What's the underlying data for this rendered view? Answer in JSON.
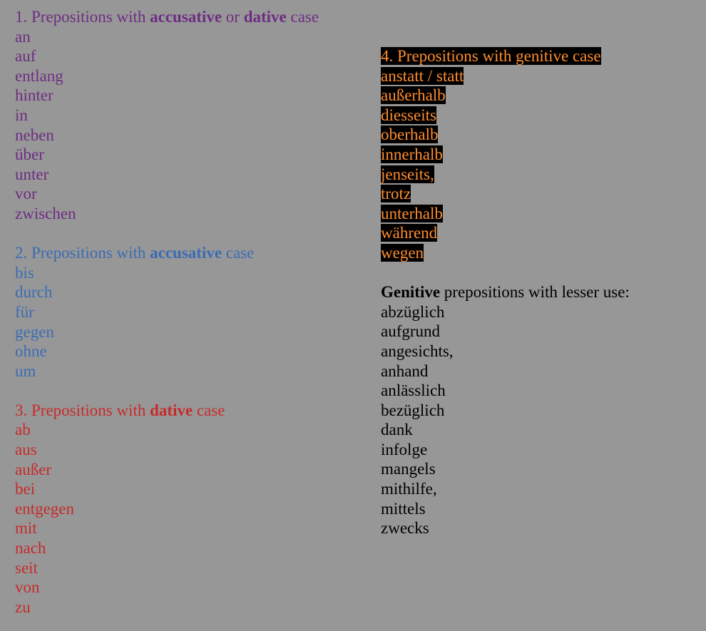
{
  "section1": {
    "heading_prefix": "1. Prepositions with ",
    "heading_b1": "accusative",
    "heading_mid": " or ",
    "heading_b2": "dative",
    "heading_suffix": " case",
    "items": [
      "an",
      "auf",
      "entlang",
      "hinter",
      "in",
      "neben",
      "über",
      "unter",
      "vor",
      "zwischen"
    ],
    "color": "#6e2d82"
  },
  "section2": {
    "heading_prefix": "2. Prepositions with ",
    "heading_b": "accusative",
    "heading_suffix": " case",
    "items": [
      "bis",
      "durch",
      "für",
      "gegen",
      "ohne",
      "um"
    ],
    "color": "#3b6cb3"
  },
  "section3": {
    "heading_prefix": "3. Prepositions with ",
    "heading_b": "dative",
    "heading_suffix": " case",
    "items": [
      "ab",
      "aus",
      "außer",
      "bei",
      "entgegen",
      "mit",
      "nach",
      "seit",
      "von",
      "zu"
    ],
    "color": "#c82a2a"
  },
  "section4": {
    "heading": "4. Prepositions with genitive case",
    "items": [
      "anstatt / statt",
      "außerhalb",
      "diesseits",
      "oberhalb",
      "innerhalb",
      "jenseits,",
      "trotz",
      "unterhalb",
      "während",
      "wegen"
    ],
    "color": "#ff8c2e",
    "highlight": "#000000"
  },
  "section5": {
    "heading_b": "Genitive",
    "heading_suffix": " prepositions with lesser use:",
    "items": [
      "abzüglich",
      "aufgrund",
      "angesichts,",
      "anhand",
      "anlässlich",
      "bezüglich",
      "dank",
      "infolge",
      "mangels",
      "mithilfe,",
      "mittels",
      "zwecks"
    ]
  }
}
